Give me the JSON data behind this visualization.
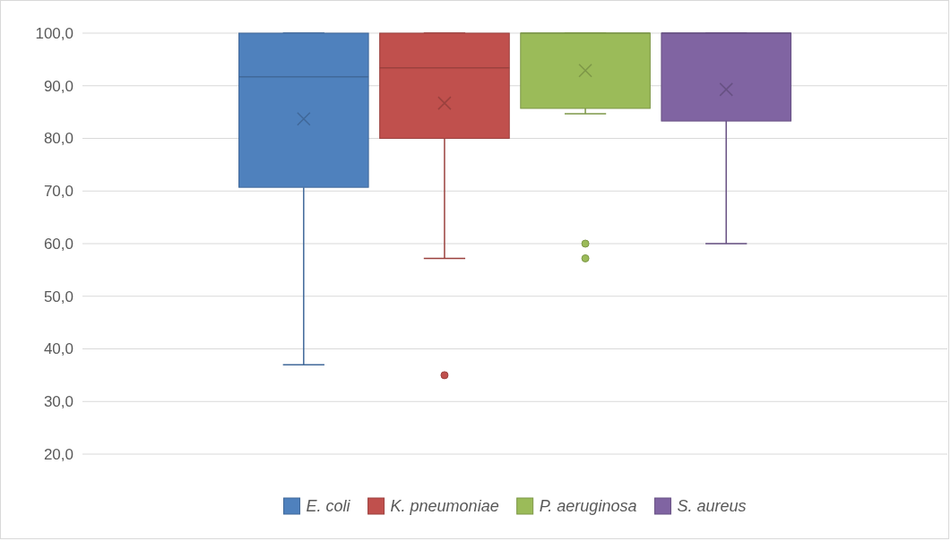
{
  "chart_data": {
    "type": "box",
    "categories": [
      null
    ],
    "ylim": [
      20,
      100
    ],
    "yticks": [
      {
        "value": 20,
        "label": "20,0"
      },
      {
        "value": 30,
        "label": "30,0"
      },
      {
        "value": 40,
        "label": "40,0"
      },
      {
        "value": 50,
        "label": "50,0"
      },
      {
        "value": 60,
        "label": "60,0"
      },
      {
        "value": 70,
        "label": "70,0"
      },
      {
        "value": 80,
        "label": "80,0"
      },
      {
        "value": 90,
        "label": "90,0"
      },
      {
        "value": 100,
        "label": "100,0"
      }
    ],
    "grid": "y",
    "legend": "bottom",
    "series": [
      {
        "name": "E. coli",
        "color": "#4f81bd",
        "boxes": [
          {
            "low": 37,
            "q1": 70.7,
            "median": 91.7,
            "q3": 100,
            "high": 100,
            "mean": 83.7
          }
        ]
      },
      {
        "name": "K. pneumoniae",
        "color": "#c0504d",
        "boxes": [
          {
            "low": 57.2,
            "q1": 80,
            "median": 93.4,
            "q3": 100,
            "high": 100,
            "mean": 86.7,
            "outliers": [
              35
            ]
          }
        ]
      },
      {
        "name": "P. aeruginosa",
        "color": "#9bbb59",
        "boxes": [
          {
            "low": 84.7,
            "q1": 85.7,
            "median": 100,
            "q3": 100,
            "high": 100,
            "mean": 92.9,
            "outliers": [
              60,
              57.2
            ]
          }
        ]
      },
      {
        "name": "S. aureus",
        "color": "#8064a2",
        "boxes": [
          {
            "low": 60,
            "q1": 83.3,
            "median": 100,
            "q3": 100,
            "high": 100,
            "mean": 89.3
          }
        ]
      }
    ]
  }
}
